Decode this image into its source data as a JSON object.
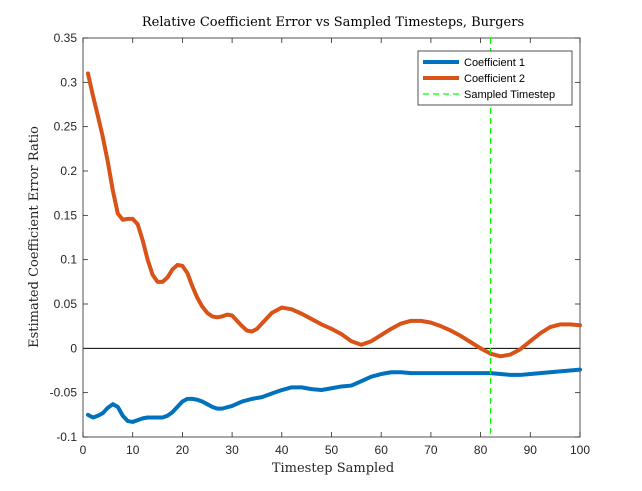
{
  "chart_data": {
    "type": "line",
    "title": "Relative Coefficient Error vs Sampled Timesteps, Burgers",
    "xlabel": "Timestep Sampled",
    "ylabel": "Estimated Coefficient Error Ratio",
    "xlim": [
      0,
      100
    ],
    "ylim": [
      -0.1,
      0.35
    ],
    "xticks": [
      0,
      10,
      20,
      30,
      40,
      50,
      60,
      70,
      80,
      90,
      100
    ],
    "xtick_labels": [
      "0",
      "10",
      "20",
      "30",
      "40",
      "50",
      "60",
      "70",
      "80",
      "90",
      "100"
    ],
    "yticks": [
      -0.1,
      -0.05,
      0,
      0.05,
      0.1,
      0.15,
      0.2,
      0.25,
      0.3,
      0.35
    ],
    "ytick_labels": [
      "-0.1",
      "-0.05",
      "0",
      "0.05",
      "0.1",
      "0.15",
      "0.2",
      "0.25",
      "0.3",
      "0.35"
    ],
    "grid": false,
    "legend_position": "top-right",
    "zero_line": true,
    "series": [
      {
        "name": "Coefficient 1",
        "color": "#0072BD",
        "style": "solid",
        "x": [
          1,
          2,
          3,
          4,
          5,
          6,
          7,
          8,
          9,
          10,
          11,
          12,
          13,
          14,
          15,
          16,
          17,
          18,
          19,
          20,
          21,
          22,
          23,
          24,
          25,
          26,
          27,
          28,
          30,
          32,
          34,
          36,
          38,
          40,
          42,
          44,
          46,
          48,
          50,
          52,
          54,
          56,
          58,
          60,
          62,
          64,
          66,
          68,
          70,
          72,
          74,
          76,
          78,
          80,
          82,
          84,
          86,
          88,
          90,
          92,
          94,
          96,
          98,
          100
        ],
        "values": [
          -0.075,
          -0.078,
          -0.076,
          -0.073,
          -0.067,
          -0.063,
          -0.066,
          -0.076,
          -0.082,
          -0.083,
          -0.081,
          -0.079,
          -0.078,
          -0.078,
          -0.078,
          -0.078,
          -0.076,
          -0.072,
          -0.066,
          -0.06,
          -0.057,
          -0.057,
          -0.058,
          -0.06,
          -0.063,
          -0.066,
          -0.068,
          -0.068,
          -0.065,
          -0.06,
          -0.057,
          -0.055,
          -0.051,
          -0.047,
          -0.044,
          -0.044,
          -0.046,
          -0.047,
          -0.045,
          -0.043,
          -0.042,
          -0.037,
          -0.032,
          -0.029,
          -0.027,
          -0.027,
          -0.028,
          -0.028,
          -0.028,
          -0.028,
          -0.028,
          -0.028,
          -0.028,
          -0.028,
          -0.028,
          -0.029,
          -0.03,
          -0.03,
          -0.029,
          -0.028,
          -0.027,
          -0.026,
          -0.025,
          -0.024
        ]
      },
      {
        "name": "Coefficient 2",
        "color": "#D95319",
        "style": "solid",
        "x": [
          1,
          2,
          3,
          4,
          5,
          6,
          7,
          8,
          9,
          10,
          11,
          12,
          13,
          14,
          15,
          16,
          17,
          18,
          19,
          20,
          21,
          22,
          23,
          24,
          25,
          26,
          27,
          28,
          29,
          30,
          31,
          32,
          33,
          34,
          35,
          36,
          38,
          40,
          42,
          44,
          46,
          48,
          50,
          52,
          54,
          56,
          58,
          60,
          62,
          64,
          66,
          68,
          70,
          72,
          74,
          76,
          78,
          80,
          82,
          84,
          86,
          88,
          90,
          92,
          94,
          96,
          98,
          100
        ],
        "values": [
          0.31,
          0.285,
          0.262,
          0.238,
          0.21,
          0.178,
          0.152,
          0.145,
          0.146,
          0.146,
          0.14,
          0.122,
          0.1,
          0.083,
          0.075,
          0.075,
          0.08,
          0.089,
          0.094,
          0.093,
          0.085,
          0.07,
          0.057,
          0.047,
          0.04,
          0.036,
          0.035,
          0.036,
          0.038,
          0.037,
          0.031,
          0.025,
          0.02,
          0.019,
          0.022,
          0.028,
          0.04,
          0.046,
          0.044,
          0.039,
          0.033,
          0.027,
          0.022,
          0.016,
          0.008,
          0.004,
          0.008,
          0.015,
          0.022,
          0.028,
          0.031,
          0.031,
          0.029,
          0.025,
          0.02,
          0.014,
          0.007,
          0.0,
          -0.006,
          -0.009,
          -0.007,
          -0.001,
          0.008,
          0.017,
          0.024,
          0.027,
          0.027,
          0.026
        ]
      }
    ],
    "vertical_lines": [
      {
        "name": "Sampled Timestep",
        "x": 82,
        "color": "#00FF00",
        "style": "dashed"
      }
    ]
  }
}
